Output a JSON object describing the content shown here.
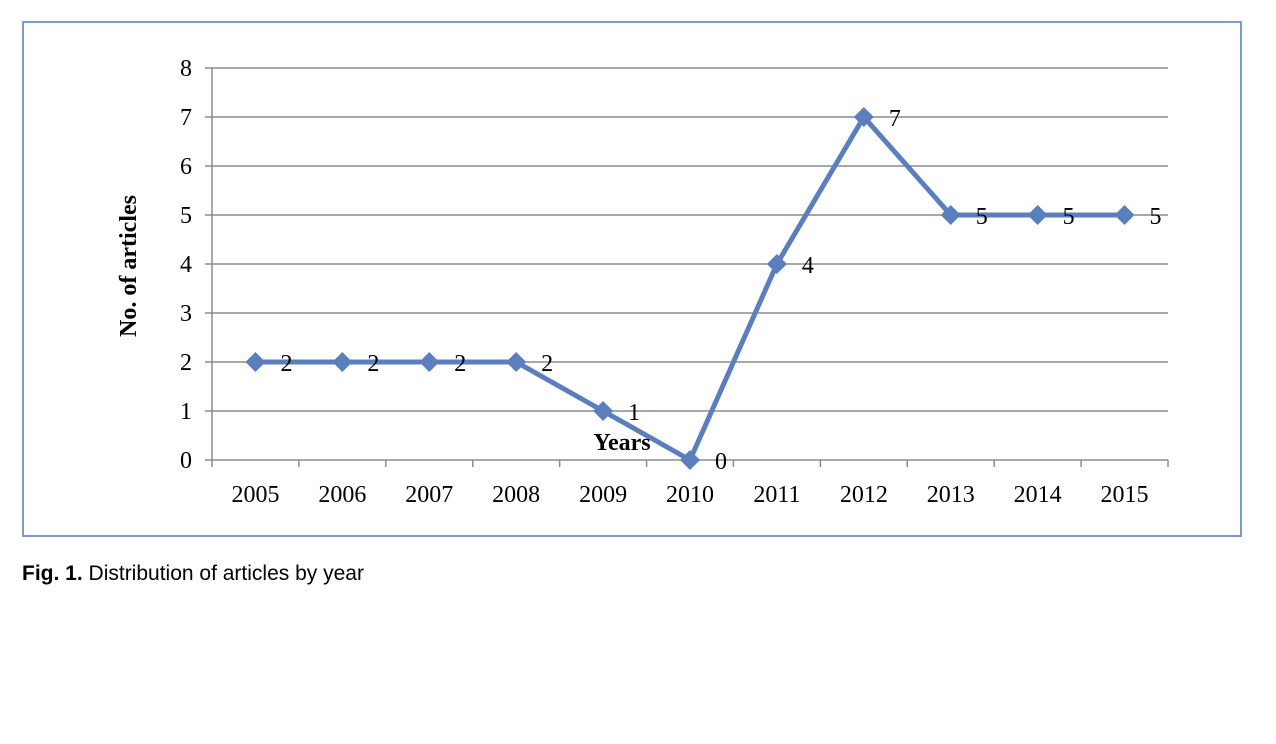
{
  "chart_data": {
    "type": "line",
    "categories": [
      "2005",
      "2006",
      "2007",
      "2008",
      "2009",
      "2010",
      "2011",
      "2012",
      "2013",
      "2014",
      "2015"
    ],
    "series": [
      {
        "values": [
          2,
          2,
          2,
          2,
          1,
          0,
          4,
          7,
          5,
          5,
          5
        ],
        "color": "#5b7fbd"
      }
    ],
    "data_labels": [
      "2",
      "2",
      "2",
      "2",
      "1",
      "0",
      "4",
      "7",
      "5",
      "5",
      "5"
    ],
    "y_ticks": [
      "0",
      "1",
      "2",
      "3",
      "4",
      "5",
      "6",
      "7",
      "8"
    ],
    "ylim": [
      0,
      8
    ],
    "xlabel": "Years",
    "ylabel": "No. of articles",
    "grid": true,
    "legend": "none",
    "marker": "diamond"
  },
  "caption": {
    "label": "Fig. 1.",
    "text": " Distribution of articles by year"
  }
}
